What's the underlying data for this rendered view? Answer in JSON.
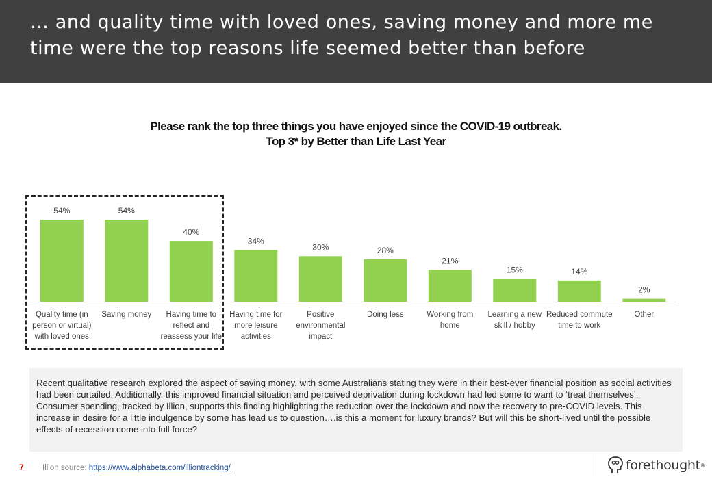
{
  "header": {
    "title": "… and quality time with loved ones, saving money and more me time were the top reasons life seemed better than before"
  },
  "chart_title": {
    "line1": "Please rank the top three things you have enjoyed since the COVID-19 outbreak.",
    "line2": "Top 3* by Better than Life Last Year"
  },
  "chart_data": {
    "type": "bar",
    "categories": [
      [
        "Quality time (in",
        "person or virtual)",
        "with loved ones"
      ],
      [
        "Saving money"
      ],
      [
        "Having time to",
        "reflect and",
        "reassess your life"
      ],
      [
        "Having time for",
        "more leisure",
        "activities"
      ],
      [
        "Positive",
        "environmental",
        "impact"
      ],
      [
        "Doing less"
      ],
      [
        "Working from",
        "home"
      ],
      [
        "Learning a new",
        "skill / hobby"
      ],
      [
        "Reduced commute",
        "time to work"
      ],
      [
        "Other"
      ]
    ],
    "values": [
      54,
      54,
      40,
      34,
      30,
      28,
      21,
      15,
      14,
      2
    ],
    "value_labels": [
      "54%",
      "54%",
      "40%",
      "34%",
      "30%",
      "28%",
      "21%",
      "15%",
      "14%",
      "2%"
    ],
    "ylim": [
      0,
      60
    ],
    "bar_color": "#92d050",
    "highlighted_categories": 3
  },
  "note": {
    "text": "Recent qualitative research explored the aspect of saving money, with some Australians stating they were in their best-ever financial position as social activities had been curtailed. Additionally, this improved financial situation and perceived deprivation during lockdown had led some to want to ‘treat themselves’.   Consumer spending, tracked by Illion, supports this finding highlighting the reduction over the lockdown and now the recovery to pre-COVID levels. This increase in desire for a little indulgence by some has lead us to question….is this a moment for luxury brands? But will this be short-lived until the possible effects of recession come into full force?"
  },
  "footer": {
    "page_number": "7",
    "source_label": "Illion source: ",
    "source_link": "https://www.alphabeta.com/illiontracking/",
    "brand": "forethought",
    "brand_mark": "®"
  },
  "colors": {
    "header_bg": "#404040",
    "bar": "#92d050",
    "note_bg": "#f2f2f2"
  }
}
